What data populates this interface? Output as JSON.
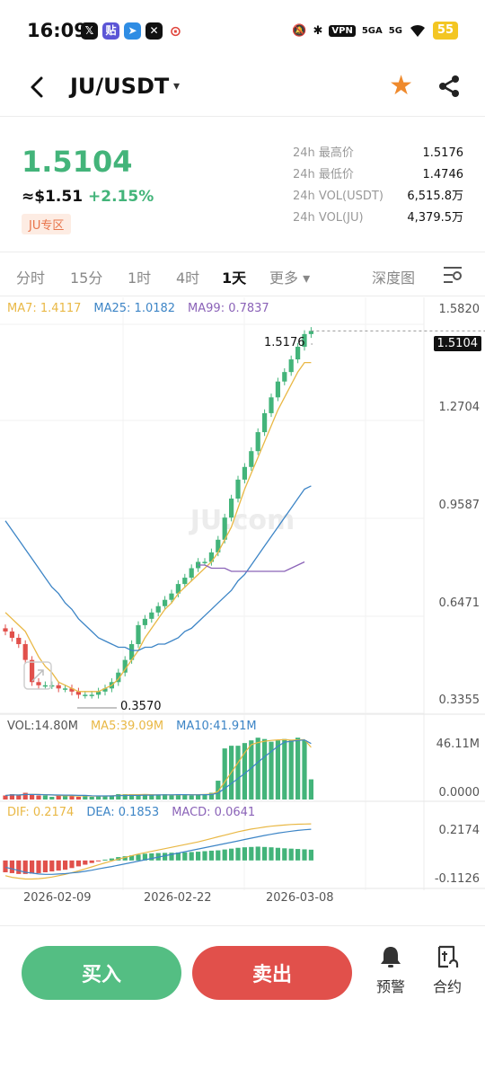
{
  "status_bar": {
    "time": "16:09",
    "apps": [
      {
        "icon": "x-icon",
        "glyph": "𝕏"
      },
      {
        "icon": "tieba-icon",
        "glyph": "贴"
      },
      {
        "icon": "telegram-icon",
        "glyph": "➤"
      },
      {
        "icon": "game-icon",
        "glyph": "✕"
      },
      {
        "icon": "location-pin-icon",
        "glyph": "⊙"
      }
    ],
    "mute_icon": "🔕",
    "bluetooth_icon": "✱",
    "vpn": "VPN",
    "signal1": "5GA",
    "signal2": "5G",
    "wifi_icon": "wifi-icon",
    "battery": "55"
  },
  "header": {
    "pair": "JU/USDT",
    "caret": "▾",
    "back_glyph": "‹",
    "star_glyph": "★",
    "star_color": "#ef8a2d"
  },
  "ticker": {
    "last_price": "1.5104",
    "usd": "≈$1.51",
    "change": "+2.15%",
    "zone": "JU专区",
    "stats": [
      {
        "label": "24h 最高价",
        "value": "1.5176"
      },
      {
        "label": "24h 最低价",
        "value": "1.4746"
      },
      {
        "label": "24h VOL(USDT)",
        "value": "6,515.8万"
      },
      {
        "label": "24h VOL(JU)",
        "value": "4,379.5万"
      }
    ]
  },
  "tabs": {
    "items": [
      "分时",
      "15分",
      "1时",
      "4时",
      "1天"
    ],
    "active": "1天",
    "more": "更多",
    "more_caret": "▾",
    "depth": "深度图"
  },
  "indicators": {
    "ma7": "MA7: 1.4117",
    "ma25": "MA25: 1.0182",
    "ma99": "MA99: 0.7837",
    "vol": "VOL:14.80M",
    "vol_ma5": "MA5:39.09M",
    "vol_ma10": "MA10:41.91M",
    "dif": "DIF: 0.2174",
    "dea": "DEA: 0.1853",
    "macd": "MACD: 0.0641"
  },
  "axes": {
    "price_ticks": [
      "1.5820",
      "1.2704",
      "0.9587",
      "0.6471",
      "0.3355"
    ],
    "current_price_tag": "1.5104",
    "high_label": "1.5176",
    "low_label": "0.3570",
    "vol_ticks": [
      "46.11M",
      "0.0000"
    ],
    "macd_ticks": [
      "0.2174",
      "-0.1126"
    ],
    "dates": [
      "2026-02-09",
      "2026-02-22",
      "2026-03-08"
    ],
    "watermark": "JU.com"
  },
  "colors": {
    "up": "#43b47a",
    "down": "#e1504b",
    "ma7": "#e9b845",
    "ma25": "#3d85c6",
    "ma99": "#8b63b8"
  },
  "chart_data": {
    "type": "candlestick",
    "price_range": [
      0.3355,
      1.582
    ],
    "closes": [
      0.56,
      0.54,
      0.52,
      0.47,
      0.4,
      0.39,
      0.39,
      0.39,
      0.38,
      0.38,
      0.37,
      0.36,
      0.36,
      0.36,
      0.37,
      0.38,
      0.4,
      0.43,
      0.47,
      0.52,
      0.58,
      0.6,
      0.62,
      0.64,
      0.66,
      0.68,
      0.71,
      0.73,
      0.76,
      0.78,
      0.78,
      0.81,
      0.85,
      0.92,
      0.98,
      1.04,
      1.08,
      1.13,
      1.19,
      1.25,
      1.3,
      1.35,
      1.38,
      1.42,
      1.46,
      1.5,
      1.51
    ],
    "ma7": [
      0.62,
      0.6,
      0.58,
      0.56,
      0.52,
      0.48,
      0.45,
      0.43,
      0.4,
      0.39,
      0.38,
      0.37,
      0.37,
      0.37,
      0.37,
      0.38,
      0.39,
      0.41,
      0.44,
      0.47,
      0.5,
      0.54,
      0.57,
      0.6,
      0.63,
      0.65,
      0.68,
      0.7,
      0.72,
      0.74,
      0.76,
      0.78,
      0.81,
      0.85,
      0.89,
      0.95,
      1.01,
      1.06,
      1.11,
      1.16,
      1.21,
      1.26,
      1.3,
      1.34,
      1.38,
      1.41,
      1.41
    ],
    "ma25": [
      0.91,
      0.88,
      0.85,
      0.82,
      0.79,
      0.76,
      0.73,
      0.7,
      0.68,
      0.65,
      0.63,
      0.6,
      0.58,
      0.56,
      0.54,
      0.53,
      0.52,
      0.51,
      0.51,
      0.5,
      0.5,
      0.51,
      0.51,
      0.52,
      0.52,
      0.53,
      0.54,
      0.56,
      0.57,
      0.59,
      0.61,
      0.63,
      0.65,
      0.67,
      0.69,
      0.72,
      0.74,
      0.77,
      0.8,
      0.83,
      0.86,
      0.89,
      0.92,
      0.95,
      0.98,
      1.01,
      1.02
    ],
    "ma99_start_index": 29,
    "ma99": [
      0.77,
      0.77,
      0.76,
      0.76,
      0.76,
      0.75,
      0.75,
      0.75,
      0.75,
      0.75,
      0.75,
      0.75,
      0.75,
      0.75,
      0.76,
      0.77,
      0.78
    ],
    "volume": [
      3,
      4,
      3,
      5,
      4,
      3,
      3,
      2,
      3,
      3,
      3,
      2,
      3,
      2,
      3,
      3,
      3,
      4,
      4,
      4,
      3,
      4,
      3,
      3,
      4,
      3,
      4,
      4,
      3,
      4,
      4,
      5,
      14,
      38,
      40,
      40,
      42,
      44,
      46,
      45,
      43,
      44,
      45,
      44,
      46,
      44,
      15
    ],
    "volume_max": 46.11,
    "macd_range": [
      -0.1126,
      0.2174
    ],
    "macd_hist": [
      -0.07,
      -0.075,
      -0.08,
      -0.08,
      -0.078,
      -0.075,
      -0.07,
      -0.065,
      -0.06,
      -0.055,
      -0.045,
      -0.035,
      -0.025,
      -0.015,
      -0.005,
      0.005,
      0.012,
      0.02,
      0.025,
      0.03,
      0.035,
      0.04,
      0.042,
      0.044,
      0.045,
      0.046,
      0.047,
      0.048,
      0.05,
      0.052,
      0.055,
      0.058,
      0.06,
      0.065,
      0.07,
      0.075,
      0.078,
      0.08,
      0.082,
      0.08,
      0.078,
      0.075,
      0.072,
      0.07,
      0.068,
      0.066,
      0.064
    ],
    "dif": [
      -0.09,
      -0.1,
      -0.105,
      -0.11,
      -0.11,
      -0.108,
      -0.104,
      -0.098,
      -0.09,
      -0.082,
      -0.072,
      -0.062,
      -0.05,
      -0.038,
      -0.026,
      -0.014,
      -0.003,
      0.008,
      0.018,
      0.028,
      0.038,
      0.046,
      0.054,
      0.062,
      0.07,
      0.078,
      0.086,
      0.094,
      0.102,
      0.11,
      0.12,
      0.13,
      0.14,
      0.15,
      0.16,
      0.17,
      0.178,
      0.186,
      0.192,
      0.198,
      0.203,
      0.207,
      0.21,
      0.213,
      0.215,
      0.216,
      0.217
    ],
    "dea": [
      -0.04,
      -0.05,
      -0.06,
      -0.07,
      -0.075,
      -0.08,
      -0.082,
      -0.082,
      -0.08,
      -0.078,
      -0.074,
      -0.07,
      -0.064,
      -0.058,
      -0.05,
      -0.043,
      -0.036,
      -0.028,
      -0.02,
      -0.012,
      -0.004,
      0.004,
      0.012,
      0.02,
      0.028,
      0.036,
      0.044,
      0.052,
      0.06,
      0.068,
      0.076,
      0.084,
      0.092,
      0.1,
      0.108,
      0.116,
      0.124,
      0.132,
      0.14,
      0.148,
      0.155,
      0.162,
      0.168,
      0.173,
      0.178,
      0.182,
      0.185
    ]
  },
  "actions": {
    "buy": "买入",
    "sell": "卖出",
    "alert": "预警",
    "contract": "合约"
  }
}
